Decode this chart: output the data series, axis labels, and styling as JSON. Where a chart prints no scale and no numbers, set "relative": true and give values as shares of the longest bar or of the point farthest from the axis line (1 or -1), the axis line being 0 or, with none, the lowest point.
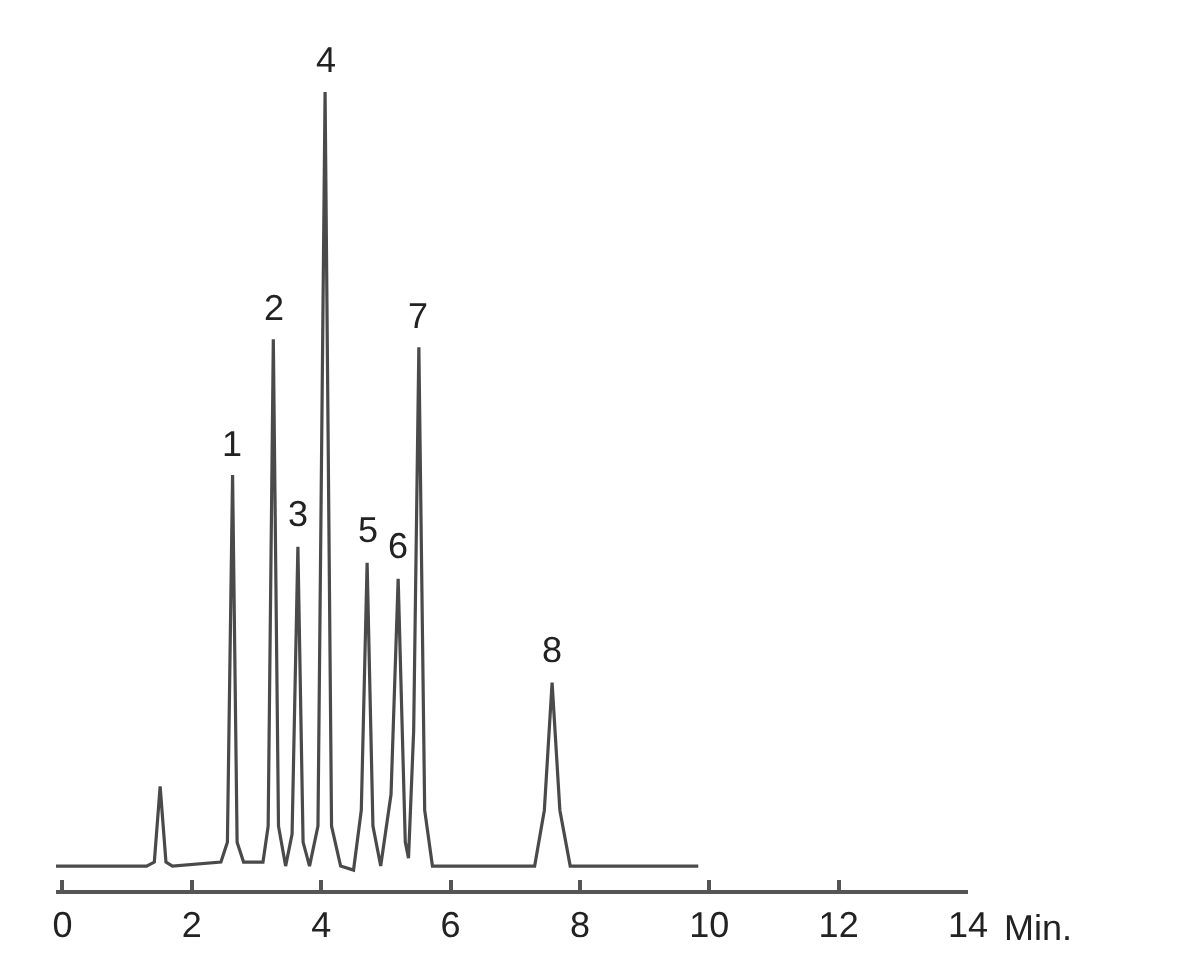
{
  "chart_data": {
    "type": "line",
    "relative": true,
    "xlabel": "Min.",
    "color": "#4a4a4a",
    "x": [
      -0.1,
      1.3,
      1.42,
      1.51,
      1.6,
      1.7,
      2.45,
      2.55,
      2.63,
      2.7,
      2.8,
      3.1,
      3.18,
      3.26,
      3.34,
      3.45,
      3.55,
      3.64,
      3.72,
      3.82,
      3.95,
      4.06,
      4.16,
      4.3,
      4.5,
      4.62,
      4.71,
      4.8,
      4.92,
      5.08,
      5.19,
      5.3,
      5.35,
      5.43,
      5.51,
      5.6,
      5.72,
      7.3,
      7.45,
      7.57,
      7.69,
      7.85,
      9.83
    ],
    "values": [
      0.03,
      0.03,
      0.035,
      0.13,
      0.035,
      0.03,
      0.035,
      0.06,
      0.52,
      0.06,
      0.035,
      0.035,
      0.08,
      0.69,
      0.08,
      0.03,
      0.07,
      0.43,
      0.06,
      0.03,
      0.08,
      1.0,
      0.08,
      0.03,
      0.025,
      0.1,
      0.41,
      0.08,
      0.03,
      0.12,
      0.39,
      0.06,
      0.04,
      0.2,
      0.68,
      0.1,
      0.03,
      0.03,
      0.1,
      0.26,
      0.1,
      0.03,
      0.03
    ],
    "xlim": [
      -0.1,
      14
    ],
    "xticks": [
      0,
      2,
      4,
      6,
      8,
      10,
      12,
      14
    ],
    "annotations": [
      {
        "text": "1",
        "x": 2.63,
        "y": 0.52
      },
      {
        "text": "2",
        "x": 3.26,
        "y": 0.69
      },
      {
        "text": "3",
        "x": 3.64,
        "y": 0.43
      },
      {
        "text": "4",
        "x": 4.06,
        "y": 1.0
      },
      {
        "text": "5",
        "x": 4.71,
        "y": 0.41
      },
      {
        "text": "6",
        "x": 5.19,
        "y": 0.39
      },
      {
        "text": "7",
        "x": 5.51,
        "y": 0.68
      },
      {
        "text": "8",
        "x": 7.57,
        "y": 0.26
      }
    ]
  }
}
